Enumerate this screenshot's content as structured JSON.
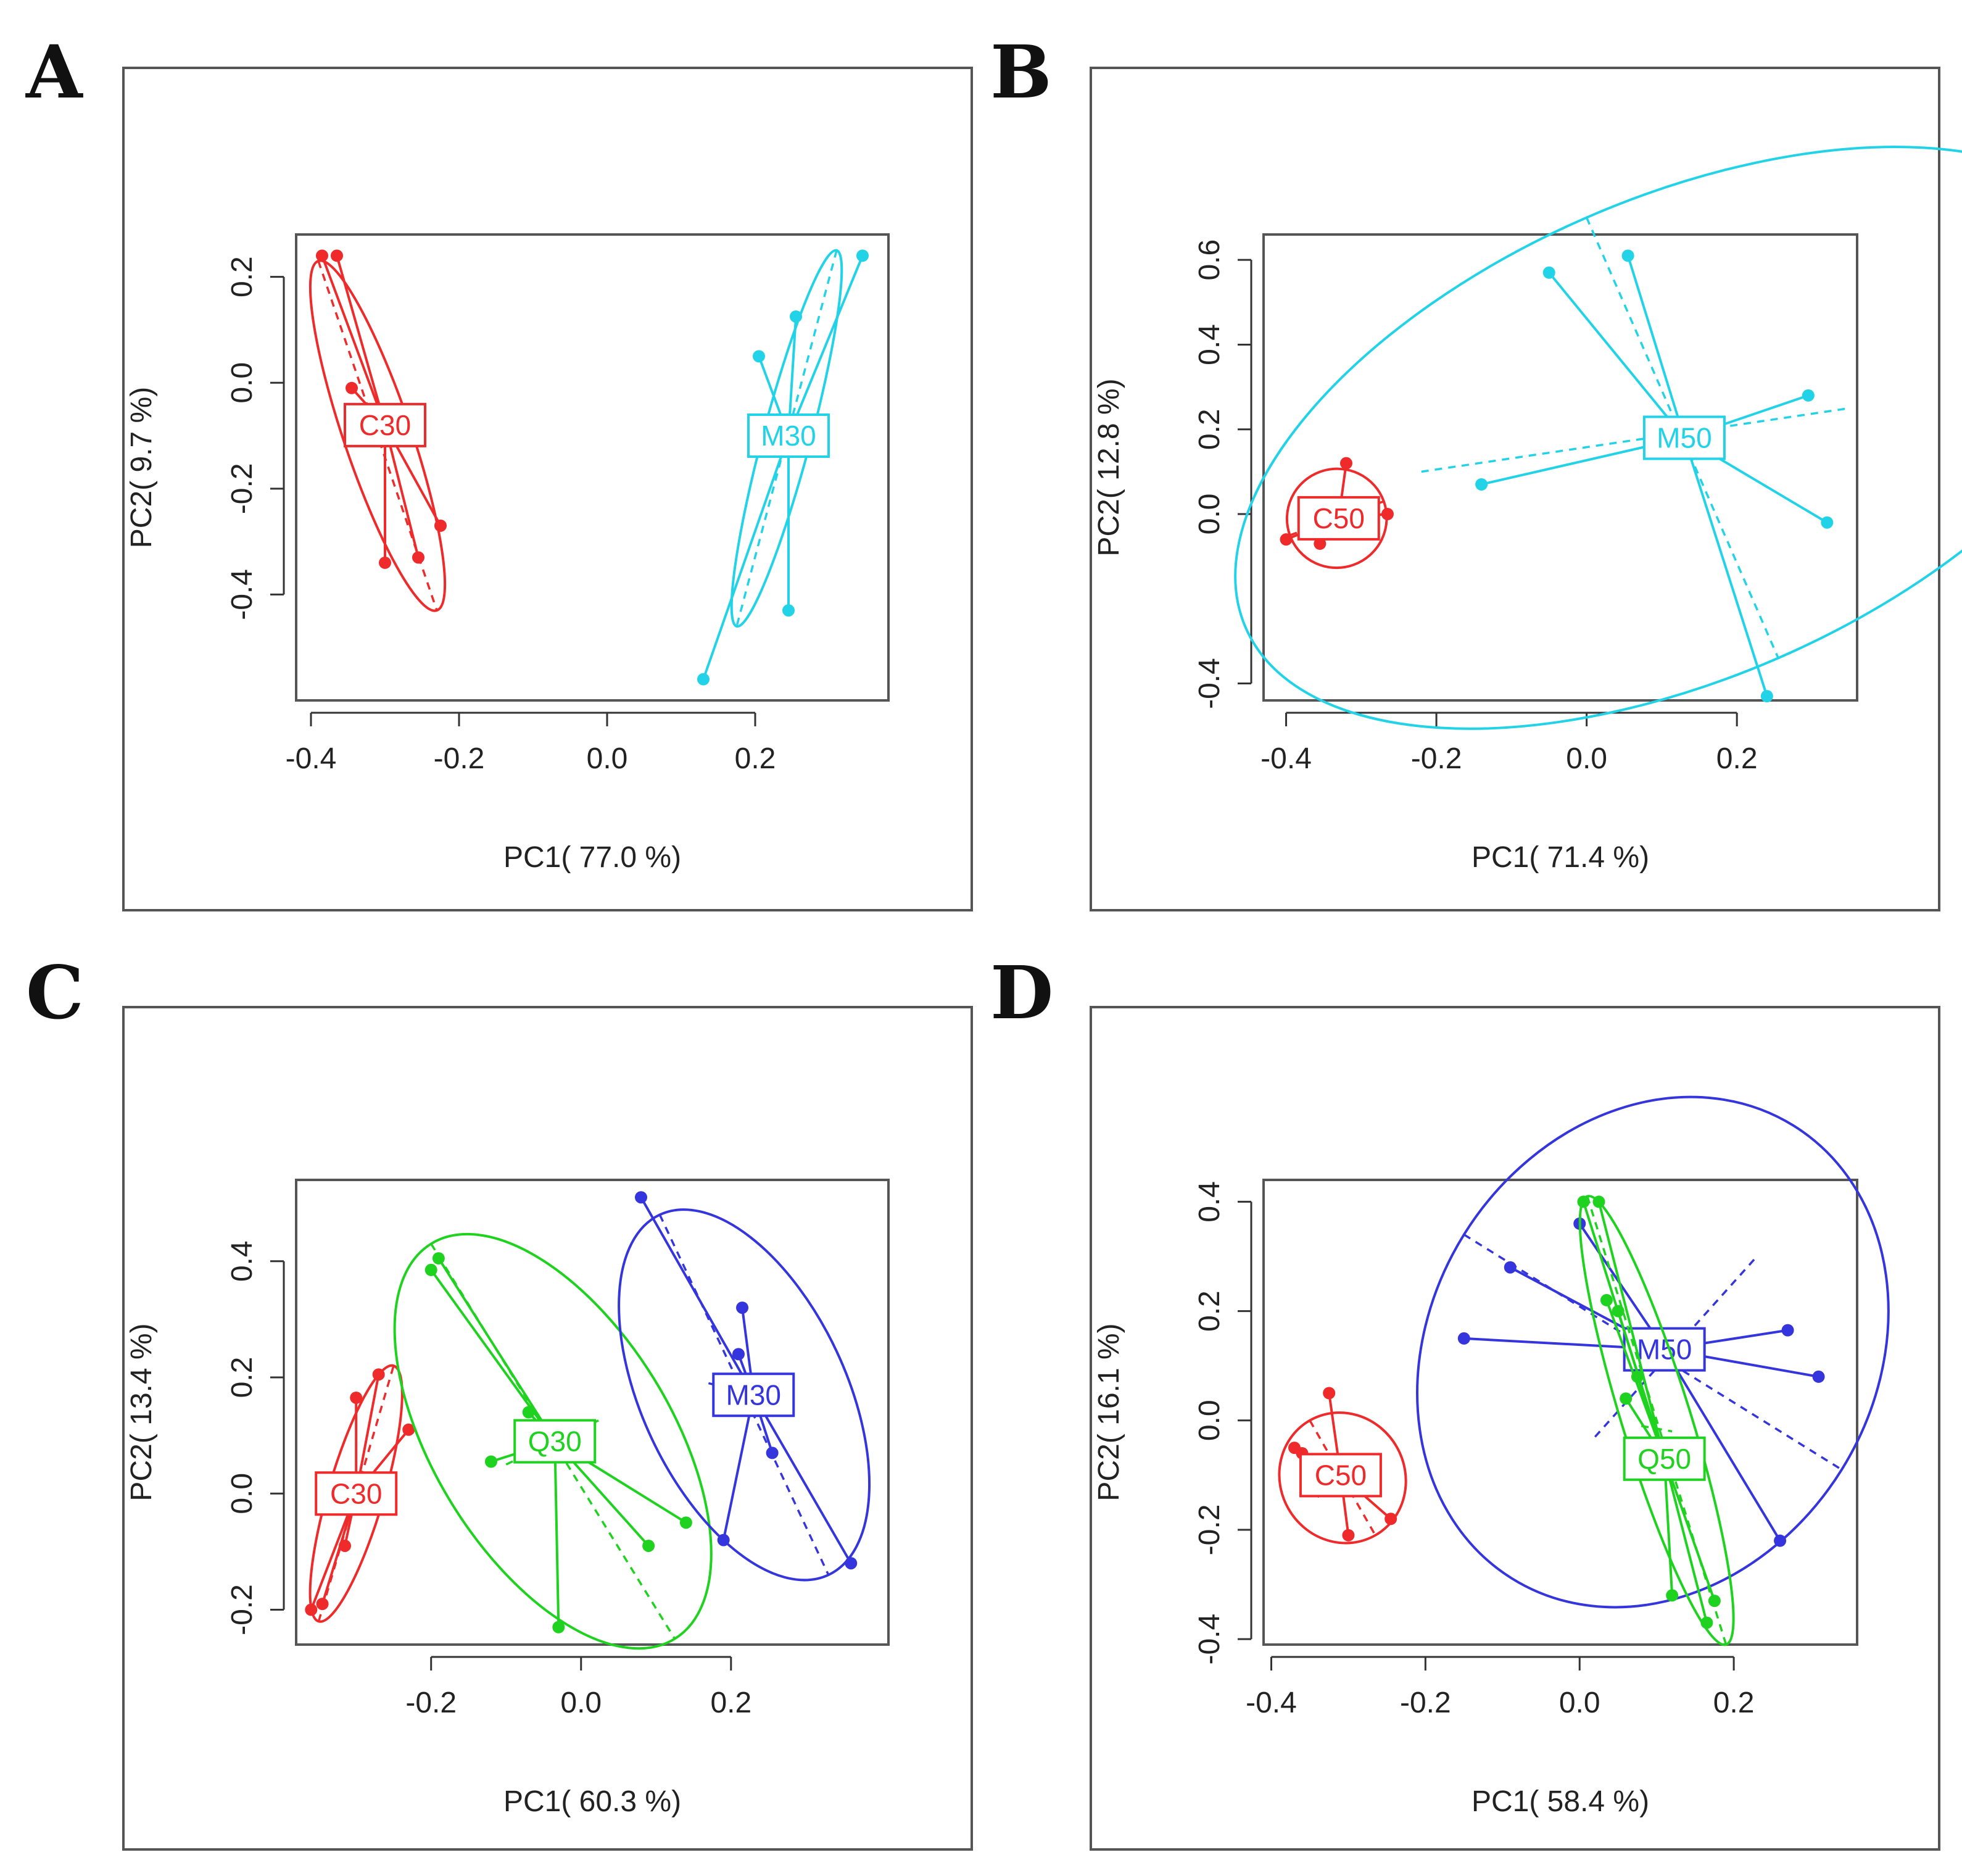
{
  "panels": [
    {
      "letter": "A",
      "chart_data": {
        "type": "scatter",
        "xlabel": "PC1( 77.0 %)",
        "ylabel": "PC2( 9.7 %)",
        "xlim": [
          -0.42,
          0.38
        ],
        "ylim": [
          -0.6,
          0.28
        ],
        "xticks": [
          -0.4,
          -0.2,
          0.0,
          0.2
        ],
        "xtick_labels": [
          "-0.4",
          "-0.2",
          "0.0",
          "0.2"
        ],
        "yticks": [
          0.2,
          0.0,
          -0.2,
          -0.4
        ],
        "ytick_labels": [
          "0.2",
          "0.0",
          "-0.2",
          "-0.4"
        ],
        "groups": [
          {
            "name": "C30",
            "color": "#ee2a2a",
            "centroid": [
              -0.3,
              -0.08
            ],
            "points": [
              [
                -0.385,
                0.24
              ],
              [
                -0.365,
                0.24
              ],
              [
                -0.345,
                -0.01
              ],
              [
                -0.3,
                -0.34
              ],
              [
                -0.255,
                -0.33
              ],
              [
                -0.225,
                -0.27
              ]
            ],
            "ellipse_axes": [
              [
                -0.39,
                0.23,
                -0.23,
                -0.43
              ],
              [
                -0.32,
                -0.06,
                -0.29,
                -0.1
              ]
            ]
          },
          {
            "name": "M30",
            "color": "#22d3e8",
            "centroid": [
              0.245,
              -0.1
            ],
            "points": [
              [
                0.205,
                0.05
              ],
              [
                0.255,
                0.125
              ],
              [
                0.345,
                0.24
              ],
              [
                0.245,
                -0.43
              ],
              [
                0.13,
                -0.56
              ]
            ],
            "ellipse_axes": [
              [
                0.31,
                0.25,
                0.175,
                -0.46
              ],
              [
                0.255,
                -0.09,
                0.235,
                -0.12
              ]
            ]
          }
        ]
      }
    },
    {
      "letter": "B",
      "chart_data": {
        "type": "scatter",
        "xlabel": "PC1( 71.4 %)",
        "ylabel": "PC2( 12.8 %)",
        "xlim": [
          -0.43,
          0.36
        ],
        "ylim": [
          -0.44,
          0.66
        ],
        "xticks": [
          -0.4,
          -0.2,
          0.0,
          0.2
        ],
        "xtick_labels": [
          "-0.4",
          "-0.2",
          "0.0",
          "0.2"
        ],
        "yticks": [
          0.6,
          0.4,
          0.2,
          0.0,
          -0.4
        ],
        "ytick_labels": [
          "0.6",
          "0.4",
          "0.2",
          "0.0",
          "-0.4"
        ],
        "groups": [
          {
            "name": "C50",
            "color": "#ee2a2a",
            "centroid": [
              -0.33,
              -0.01
            ],
            "points": [
              [
                -0.4,
                -0.06
              ],
              [
                -0.355,
                -0.07
              ],
              [
                -0.32,
                0.12
              ],
              [
                -0.265,
                0.0
              ]
            ],
            "ellipse_axes": [
              [
                -0.395,
                -0.05,
                -0.27,
                0.03
              ],
              [
                -0.345,
                0.04,
                -0.325,
                -0.06
              ]
            ]
          },
          {
            "name": "M50",
            "color": "#22d3e8",
            "centroid": [
              0.13,
              0.18
            ],
            "points": [
              [
                -0.05,
                0.57
              ],
              [
                0.055,
                0.61
              ],
              [
                0.295,
                0.28
              ],
              [
                0.32,
                -0.02
              ],
              [
                0.24,
                -0.43
              ],
              [
                -0.14,
                0.07
              ]
            ],
            "ellipse_axes": [
              [
                0.0,
                0.7,
                0.255,
                -0.34
              ],
              [
                -0.22,
                0.1,
                0.35,
                0.25
              ]
            ]
          }
        ]
      }
    },
    {
      "letter": "C",
      "chart_data": {
        "type": "scatter",
        "xlabel": "PC1( 60.3 %)",
        "ylabel": "PC2( 13.4 %)",
        "xlim": [
          -0.38,
          0.41
        ],
        "ylim": [
          -0.26,
          0.54
        ],
        "xticks": [
          -0.2,
          0.0,
          0.2
        ],
        "xtick_labels": [
          "-0.2",
          "0.0",
          "0.2"
        ],
        "yticks": [
          0.4,
          0.2,
          0.0,
          -0.2
        ],
        "ytick_labels": [
          "0.4",
          "0.2",
          "0.0",
          "-0.2"
        ],
        "groups": [
          {
            "name": "C30",
            "color": "#ee2a2a",
            "centroid": [
              -0.3,
              0.0
            ],
            "points": [
              [
                -0.36,
                -0.2
              ],
              [
                -0.345,
                -0.19
              ],
              [
                -0.315,
                -0.09
              ],
              [
                -0.3,
                0.165
              ],
              [
                -0.27,
                0.205
              ],
              [
                -0.23,
                0.11
              ]
            ],
            "ellipse_axes": [
              [
                -0.35,
                -0.22,
                -0.25,
                0.22
              ],
              [
                -0.32,
                0.01,
                -0.29,
                -0.01
              ]
            ]
          },
          {
            "name": "Q30",
            "color": "#1fd21f",
            "centroid": [
              -0.035,
              0.09
            ],
            "points": [
              [
                -0.2,
                0.385
              ],
              [
                -0.19,
                0.405
              ],
              [
                -0.07,
                0.14
              ],
              [
                -0.12,
                0.055
              ],
              [
                -0.03,
                -0.23
              ],
              [
                0.09,
                -0.09
              ],
              [
                0.14,
                -0.05
              ]
            ],
            "ellipse_axes": [
              [
                -0.2,
                0.43,
                0.125,
                -0.25
              ],
              [
                -0.1,
                0.05,
                0.03,
                0.13
              ]
            ]
          },
          {
            "name": "M30",
            "color": "#3535dd",
            "centroid": [
              0.23,
              0.17
            ],
            "points": [
              [
                0.08,
                0.51
              ],
              [
                0.215,
                0.32
              ],
              [
                0.21,
                0.24
              ],
              [
                0.19,
                -0.08
              ],
              [
                0.255,
                0.07
              ],
              [
                0.36,
                -0.12
              ]
            ],
            "ellipse_axes": [
              [
                0.105,
                0.48,
                0.33,
                -0.14
              ],
              [
                0.17,
                0.19,
                0.29,
                0.15
              ]
            ]
          }
        ]
      }
    },
    {
      "letter": "D",
      "chart_data": {
        "type": "scatter",
        "xlabel": "PC1( 58.4 %)",
        "ylabel": "PC2( 16.1 %)",
        "xlim": [
          -0.41,
          0.36
        ],
        "ylim": [
          -0.41,
          0.44
        ],
        "xticks": [
          -0.4,
          -0.2,
          0.0,
          0.2
        ],
        "xtick_labels": [
          "-0.4",
          "-0.2",
          "0.0",
          "0.2"
        ],
        "yticks": [
          0.4,
          0.2,
          0.0,
          -0.2,
          -0.4
        ],
        "ytick_labels": [
          "0.4",
          "0.2",
          "0.0",
          "-0.2",
          "-0.4"
        ],
        "groups": [
          {
            "name": "C50",
            "color": "#ee2a2a",
            "centroid": [
              -0.31,
              -0.1
            ],
            "points": [
              [
                -0.37,
                -0.05
              ],
              [
                -0.36,
                -0.06
              ],
              [
                -0.325,
                0.05
              ],
              [
                -0.3,
                -0.21
              ],
              [
                -0.245,
                -0.18
              ]
            ],
            "ellipse_axes": [
              [
                -0.35,
                0.0,
                -0.265,
                -0.21
              ],
              [
                -0.34,
                -0.14,
                -0.28,
                -0.08
              ]
            ]
          },
          {
            "name": "M50",
            "color": "#3535dd",
            "centroid": [
              0.11,
              0.13
            ],
            "points": [
              [
                -0.09,
                0.28
              ],
              [
                0.0,
                0.36
              ],
              [
                0.27,
                0.165
              ],
              [
                0.31,
                0.08
              ],
              [
                0.26,
                -0.22
              ],
              [
                -0.15,
                0.15
              ]
            ],
            "ellipse_axes": [
              [
                -0.15,
                0.34,
                0.34,
                -0.09
              ],
              [
                0.02,
                -0.03,
                0.23,
                0.3
              ]
            ]
          },
          {
            "name": "Q50",
            "color": "#1fd21f",
            "centroid": [
              0.11,
              -0.07
            ],
            "points": [
              [
                0.005,
                0.4
              ],
              [
                0.025,
                0.4
              ],
              [
                0.035,
                0.22
              ],
              [
                0.05,
                0.2
              ],
              [
                0.075,
                0.08
              ],
              [
                0.12,
                -0.32
              ],
              [
                0.165,
                -0.37
              ],
              [
                0.175,
                -0.33
              ],
              [
                0.06,
                0.04
              ]
            ],
            "ellipse_axes": [
              [
                0.01,
                0.41,
                0.19,
                -0.41
              ],
              [
                0.08,
                -0.01,
                0.12,
                -0.02
              ]
            ]
          }
        ]
      }
    }
  ]
}
